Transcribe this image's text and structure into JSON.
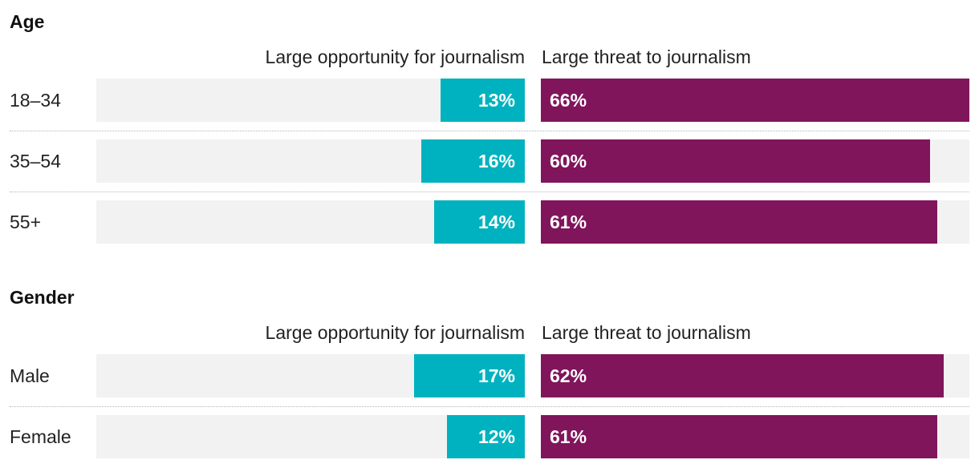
{
  "chart_data": [
    {
      "type": "bar",
      "title": "Age",
      "orientation": "horizontal",
      "left_header": "Large opportunity for journalism",
      "right_header": "Large threat to journalism",
      "categories": [
        "18–34",
        "35–54",
        "55+"
      ],
      "series": [
        {
          "name": "Large opportunity for journalism",
          "values": [
            13,
            16,
            14
          ],
          "labels": [
            "13%",
            "16%",
            "14%"
          ],
          "color": "#00b2bf"
        },
        {
          "name": "Large threat to journalism",
          "values": [
            66,
            60,
            61
          ],
          "labels": [
            "66%",
            "60%",
            "61%"
          ],
          "color": "#80155c"
        }
      ],
      "xlim": [
        0,
        66
      ]
    },
    {
      "type": "bar",
      "title": "Gender",
      "orientation": "horizontal",
      "left_header": "Large opportunity for journalism",
      "right_header": "Large threat to journalism",
      "categories": [
        "Male",
        "Female"
      ],
      "series": [
        {
          "name": "Large opportunity for journalism",
          "values": [
            17,
            12
          ],
          "labels": [
            "17%",
            "12%"
          ],
          "color": "#00b2bf"
        },
        {
          "name": "Large threat to journalism",
          "values": [
            62,
            61
          ],
          "labels": [
            "62%",
            "61%"
          ],
          "color": "#80155c"
        }
      ],
      "xlim": [
        0,
        66
      ]
    }
  ]
}
